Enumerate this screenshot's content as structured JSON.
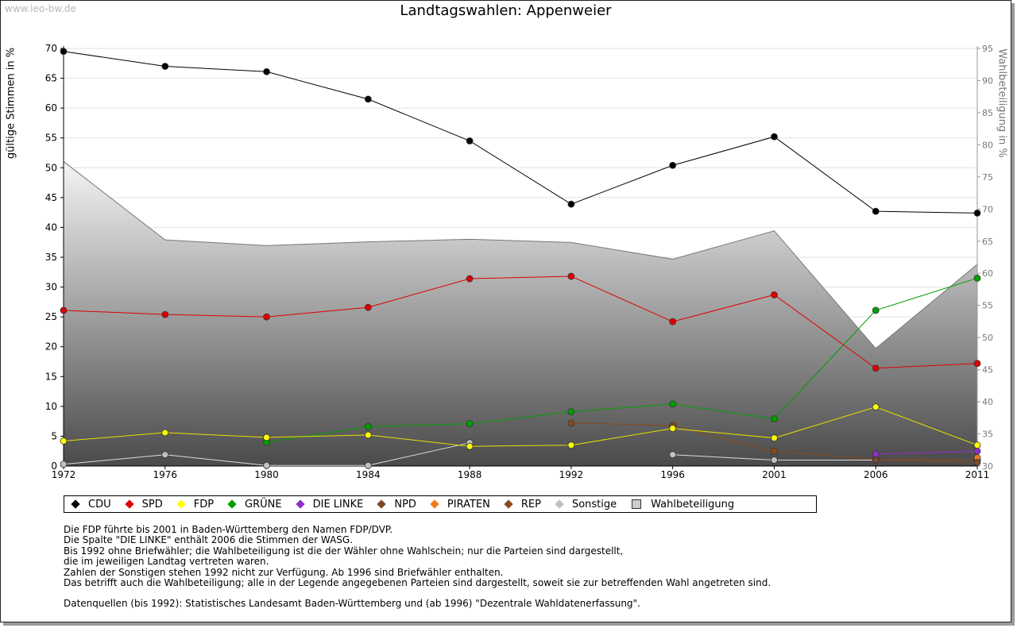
{
  "watermark": "www.leo-bw.de",
  "title": "Landtagswahlen: Appenweier",
  "ylabel_left": "gültige Stimmen in %",
  "ylabel_right": "Wahlbeteiligung in %",
  "legend": [
    {
      "name": "CDU",
      "color": "#000000"
    },
    {
      "name": "SPD",
      "color": "#e00000"
    },
    {
      "name": "FDP",
      "color": "#ffff00"
    },
    {
      "name": "GRÜNE",
      "color": "#00a000"
    },
    {
      "name": "DIE LINKE",
      "color": "#8e2fc9"
    },
    {
      "name": "NPD",
      "color": "#7a4a2a"
    },
    {
      "name": "PIRATEN",
      "color": "#f07a18"
    },
    {
      "name": "REP",
      "color": "#8a4a1e"
    },
    {
      "name": "Sonstige",
      "color": "#c0c0c0"
    },
    {
      "name": "Wahlbeteiligung",
      "color": "#bbbbbb"
    }
  ],
  "notes": [
    "Die FDP führte bis 2001 in Baden-Württemberg den Namen FDP/DVP.",
    "Die Spalte \"DIE LINKE\" enthält 2006 die Stimmen der WASG.",
    "Bis 1992 ohne Briefwähler; die Wahlbeteiligung ist die der Wähler ohne Wahlschein; nur die Parteien sind dargestellt,",
    "die im jeweiligen Landtag vertreten waren.",
    "Zahlen der Sonstigen stehen 1992 nicht zur Verfügung. Ab 1996 sind Briefwähler enthalten.",
    "Das betrifft auch die Wahlbeteiligung; alle in der Legende angegebenen Parteien sind dargestellt, soweit sie zur betreffenden Wahl angetreten sind."
  ],
  "source": "Datenquellen (bis 1992): Statistisches Landesamt Baden-Württemberg und (ab 1996) \"Dezentrale Wahldatenerfassung\".",
  "chart_data": {
    "type": "line",
    "title": "Landtagswahlen: Appenweier",
    "xlabel": "",
    "ylabel": "gültige Stimmen in %",
    "y2label": "Wahlbeteiligung in %",
    "x": [
      "1972",
      "1976",
      "1980",
      "1984",
      "1988",
      "1992",
      "1996",
      "2001",
      "2006",
      "2011"
    ],
    "x_ticks": [
      "1972",
      "1976",
      "1980",
      "1984",
      "1988",
      "1992",
      "1996",
      "2001",
      "2006",
      "2011"
    ],
    "ylim": [
      0,
      70
    ],
    "y_ticks": [
      0,
      5,
      10,
      15,
      20,
      25,
      30,
      35,
      40,
      45,
      50,
      55,
      60,
      65,
      70
    ],
    "y2lim": [
      30,
      95
    ],
    "y2_ticks": [
      30,
      35,
      40,
      45,
      50,
      55,
      60,
      65,
      70,
      75,
      80,
      85,
      90,
      95
    ],
    "grid": true,
    "legend_position": "bottom",
    "area": {
      "name": "Wahlbeteiligung",
      "axis": "right",
      "values": [
        77.4,
        65.2,
        64.3,
        64.9,
        65.3,
        64.8,
        62.2,
        66.6,
        48.3,
        61.4
      ]
    },
    "series": [
      {
        "name": "CDU",
        "color": "#000000",
        "values": [
          69.5,
          67.0,
          66.1,
          61.5,
          54.5,
          43.9,
          50.4,
          55.2,
          42.7,
          42.4
        ]
      },
      {
        "name": "SPD",
        "color": "#e00000",
        "values": [
          26.1,
          25.4,
          25.0,
          26.6,
          31.4,
          31.8,
          24.2,
          28.7,
          16.4,
          17.2
        ]
      },
      {
        "name": "FDP",
        "color": "#ffff00",
        "values": [
          4.2,
          5.6,
          4.8,
          5.2,
          3.3,
          3.5,
          6.3,
          4.7,
          9.9,
          3.5
        ]
      },
      {
        "name": "GRÜNE",
        "color": "#00a000",
        "values": [
          null,
          null,
          4.0,
          6.6,
          7.1,
          9.1,
          10.4,
          7.9,
          26.1,
          31.5
        ]
      },
      {
        "name": "DIE LINKE",
        "color": "#8e2fc9",
        "values": [
          null,
          null,
          null,
          null,
          null,
          null,
          null,
          null,
          2.0,
          2.5
        ]
      },
      {
        "name": "NPD",
        "color": "#7a4a2a",
        "values": [
          null,
          null,
          null,
          null,
          null,
          null,
          null,
          null,
          1.0,
          0.6
        ]
      },
      {
        "name": "PIRATEN",
        "color": "#f07a18",
        "values": [
          null,
          null,
          null,
          null,
          null,
          null,
          null,
          null,
          null,
          1.4
        ]
      },
      {
        "name": "REP",
        "color": "#8a4a1e",
        "values": [
          null,
          null,
          null,
          null,
          null,
          7.2,
          6.8,
          2.5,
          1.1,
          1.0
        ]
      },
      {
        "name": "Sonstige",
        "color": "#c0c0c0",
        "values": [
          0.3,
          1.9,
          0.1,
          0.1,
          3.9,
          null,
          1.9,
          1.0,
          1.0,
          null
        ]
      }
    ]
  }
}
